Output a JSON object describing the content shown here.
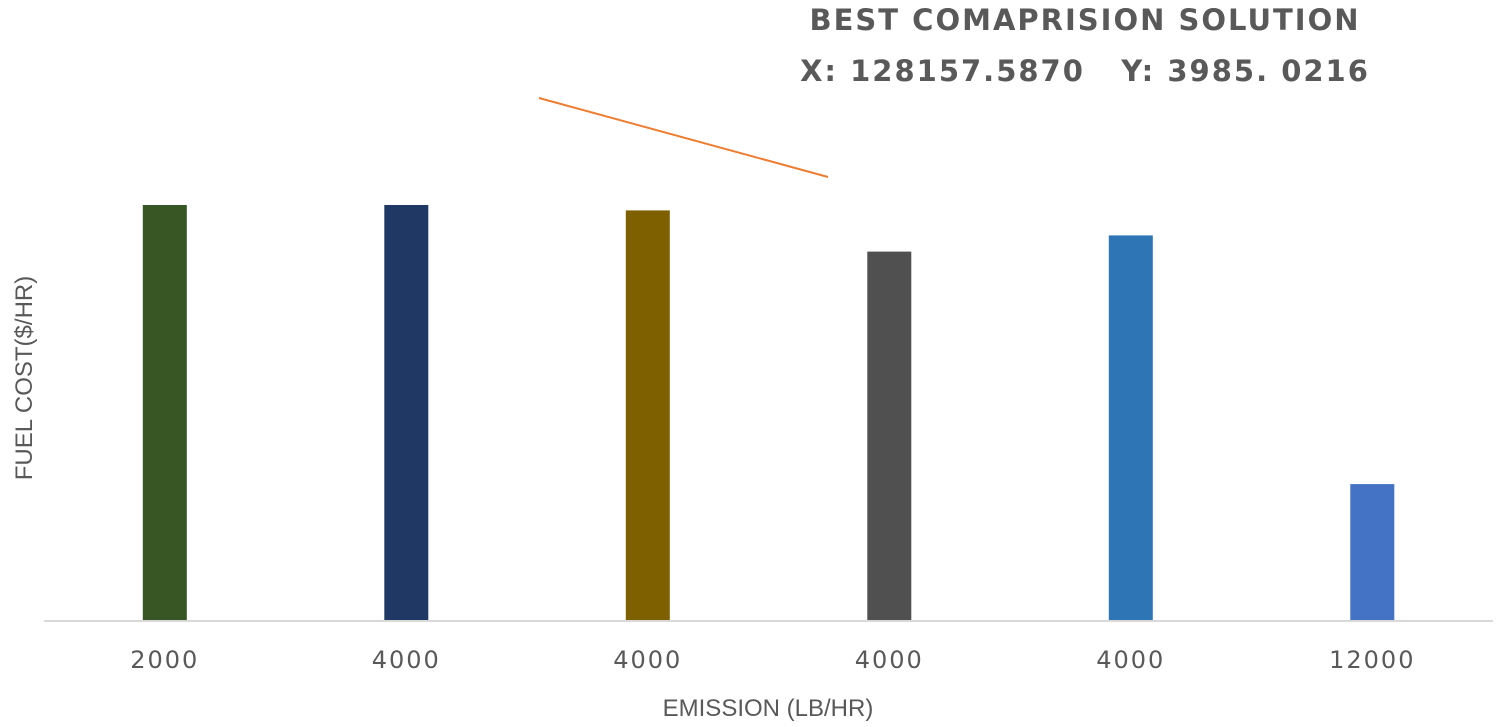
{
  "chart_data": {
    "type": "bar",
    "categories": [
      "2000",
      "4000",
      "4000",
      "4000",
      "4000",
      "12000"
    ],
    "values": [
      100,
      100,
      98.7,
      88.8,
      92.7,
      32.9
    ],
    "ylim": [
      0,
      100
    ],
    "xlabel": "EMISSION (LB/HR)",
    "ylabel": "FUEL COST($/HR)",
    "title": "",
    "grid": false,
    "legend": "none",
    "bar_colors": [
      "#375623",
      "#203864",
      "#7f6000",
      "#505050",
      "#2e75b6",
      "#4472c4"
    ],
    "annotation": {
      "line1": "BEST COMAPRISION SOLUTION",
      "line2": "X: 128157.5870   Y: 3985. 0216",
      "line_color": "#ed7d31"
    },
    "axis_color": "#d9d9d9"
  }
}
